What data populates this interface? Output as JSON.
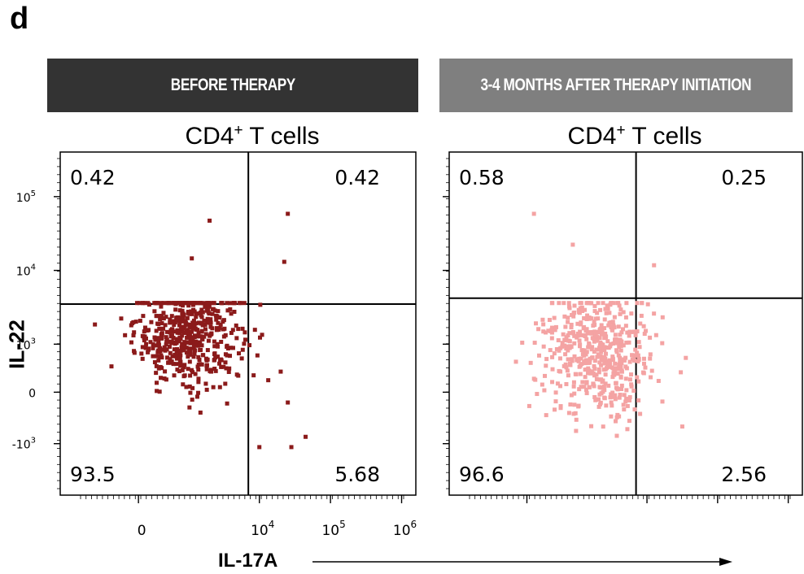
{
  "panel_letter": "d",
  "headers": {
    "before": "BEFORE THERAPY",
    "after": "3-4 MONTHS AFTER THERAPY INITIATION"
  },
  "colors": {
    "before_header": "#333333",
    "after_header": "#7f7f7f",
    "before_points": "#8b1a1a",
    "after_points": "#f4a3a3"
  },
  "axis_labels": {
    "y": "IL-22",
    "x": "IL-17A"
  },
  "chart_data": [
    {
      "type": "scatter",
      "title_main": "CD4",
      "title_sup": "+",
      "title_rest": " T cells",
      "xlabel": "IL-17A",
      "ylabel": "IL-22",
      "x_scale": "biexponential",
      "y_scale": "biexponential",
      "x_ticks": [
        {
          "value": 0,
          "label": "0"
        },
        {
          "value": 10000,
          "label_base": "10",
          "label_exp": "4"
        },
        {
          "value": 100000,
          "label_base": "10",
          "label_exp": "5"
        },
        {
          "value": 1000000,
          "label_base": "10",
          "label_exp": "6"
        }
      ],
      "y_ticks": [
        {
          "value": -1000,
          "label_base": "-10",
          "label_exp": "3"
        },
        {
          "value": 0,
          "label": "0"
        },
        {
          "value": 1000,
          "label_base": "10",
          "label_exp": "3"
        },
        {
          "value": 10000,
          "label_base": "10",
          "label_exp": "4"
        },
        {
          "value": 100000,
          "label_base": "10",
          "label_exp": "5"
        }
      ],
      "quadrant_gate": {
        "x": 7000,
        "y": 3500
      },
      "quadrant_percent": {
        "upper_left": "0.42",
        "upper_right": "0.42",
        "lower_left": "93.5",
        "lower_right": "5.68"
      },
      "point_color": "#8b1a1a"
    },
    {
      "type": "scatter",
      "title_main": "CD4",
      "title_sup": "+",
      "title_rest": " T cells",
      "xlabel": "IL-17A",
      "ylabel": "IL-22",
      "x_scale": "biexponential",
      "y_scale": "biexponential",
      "quadrant_gate": {
        "x": 7000,
        "y": 4200
      },
      "quadrant_percent": {
        "upper_left": "0.58",
        "upper_right": "0.25",
        "lower_left": "96.6",
        "lower_right": "2.56"
      },
      "point_color": "#f4a3a3"
    }
  ]
}
